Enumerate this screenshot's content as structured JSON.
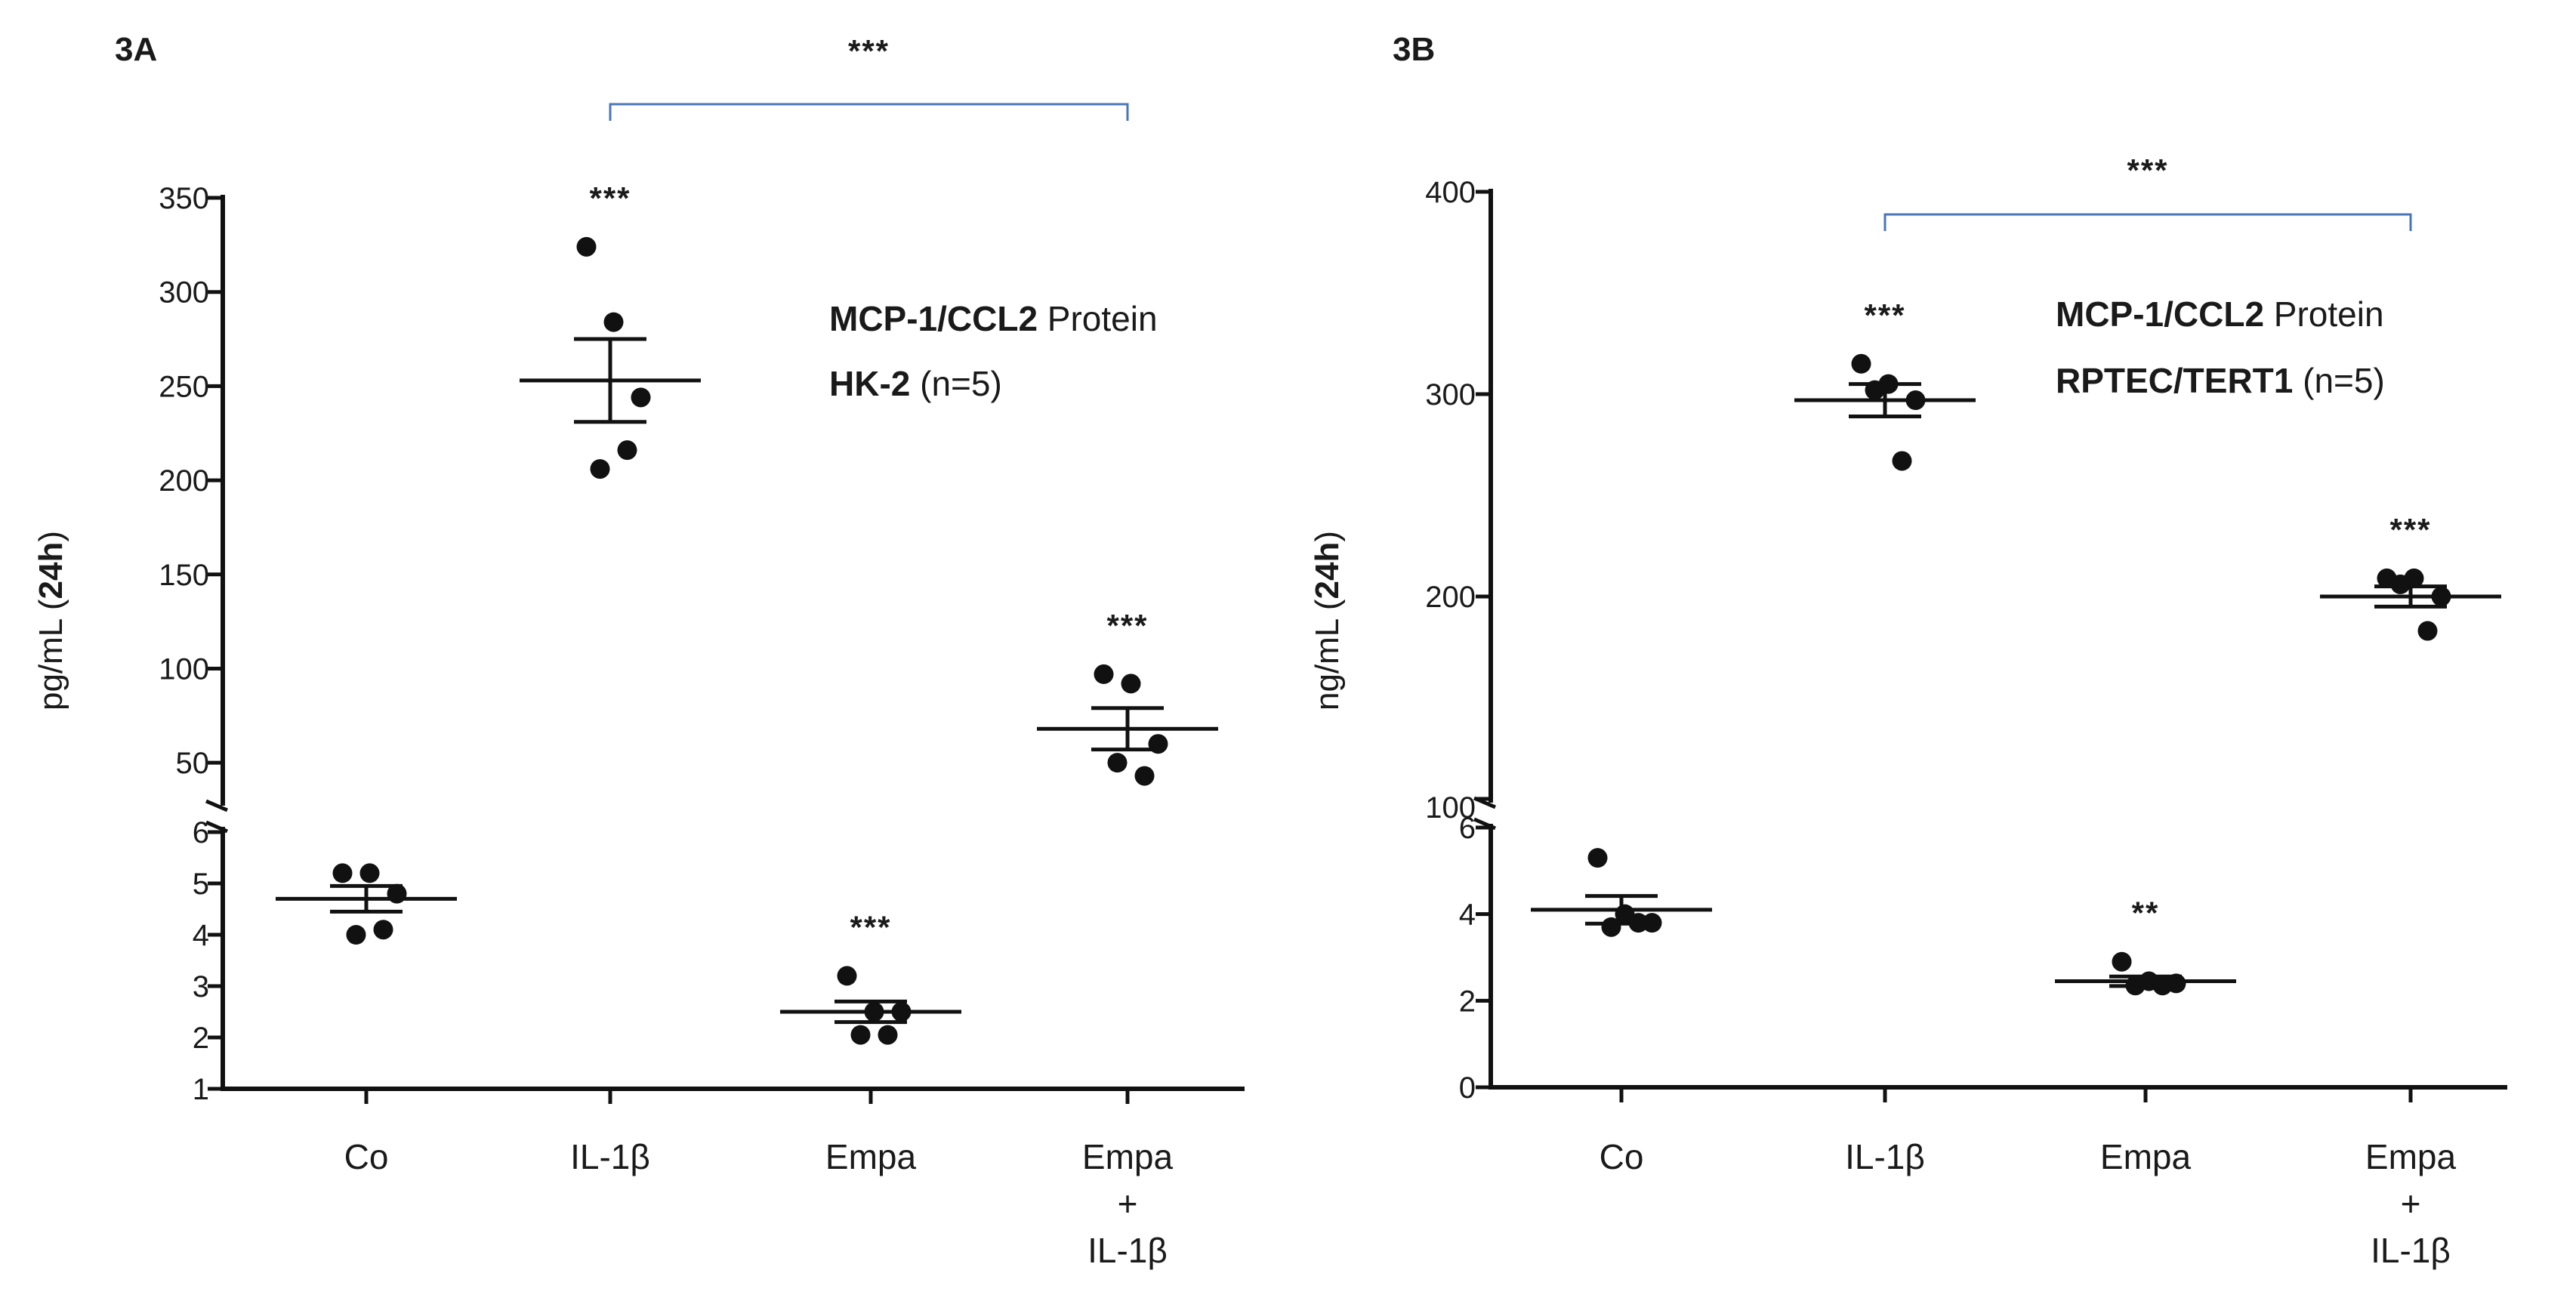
{
  "chart_data": [
    {
      "type": "scatter",
      "panel_label": "3A",
      "ylabel_unit": "pg/mL (",
      "ylabel_bold": "24h",
      "ylabel_close": ")",
      "legend": {
        "line1_bold": "MCP-1/CCL2",
        "line1_rest": " Protein",
        "line2_bold": "HK-2",
        "line2_rest": " (n=5)"
      },
      "categories": [
        {
          "lines": [
            "Co"
          ]
        },
        {
          "lines": [
            "IL-1β"
          ]
        },
        {
          "lines": [
            "Empa"
          ]
        },
        {
          "lines": [
            "Empa",
            "+",
            "IL-1β"
          ]
        }
      ],
      "lower_axis": {
        "range": [
          1,
          6
        ],
        "ticks": [
          "1",
          "2",
          "3",
          "4",
          "5",
          "6"
        ],
        "tick_values": [
          1,
          2,
          3,
          4,
          5,
          6
        ]
      },
      "upper_axis": {
        "range": [
          30,
          350
        ],
        "ticks": [
          "50",
          "100",
          "150",
          "200",
          "250",
          "300",
          "350"
        ],
        "tick_values": [
          50,
          100,
          150,
          200,
          250,
          300,
          350
        ]
      },
      "groups": [
        {
          "name": "Co",
          "segment": "lower",
          "points": [
            5.2,
            5.2,
            4.8,
            4.0,
            4.1
          ],
          "mean": 4.7,
          "sem": 0.25,
          "sig": ""
        },
        {
          "name": "IL-1β",
          "segment": "upper",
          "points": [
            324,
            284,
            244,
            206,
            216
          ],
          "mean": 253,
          "sem": 22,
          "sig": "***"
        },
        {
          "name": "Empa",
          "segment": "lower",
          "points": [
            3.2,
            2.5,
            2.5,
            2.05,
            2.05
          ],
          "mean": 2.5,
          "sem": 0.2,
          "sig": "***"
        },
        {
          "name": "Empa + IL-1β",
          "segment": "upper",
          "points": [
            97,
            92,
            60,
            50,
            43
          ],
          "mean": 68,
          "sem": 11,
          "sig": "***"
        }
      ],
      "bracket": {
        "from": 1,
        "to": 3,
        "label": "***"
      }
    },
    {
      "type": "scatter",
      "panel_label": "3B",
      "ylabel_unit": "ng/mL (",
      "ylabel_bold": "24h",
      "ylabel_close": ")",
      "legend": {
        "line1_bold": "MCP-1/CCL2",
        "line1_rest": " Protein",
        "line2_bold": "RPTEC/TERT1",
        "line2_rest": " (n=5)"
      },
      "categories": [
        {
          "lines": [
            "Co"
          ]
        },
        {
          "lines": [
            "IL-1β"
          ]
        },
        {
          "lines": [
            "Empa"
          ]
        },
        {
          "lines": [
            "Empa",
            "+",
            "IL-1β"
          ]
        }
      ],
      "lower_axis": {
        "range": [
          0,
          6
        ],
        "ticks": [
          "0",
          "2",
          "4",
          "6"
        ],
        "tick_values": [
          0,
          2,
          4,
          6
        ]
      },
      "upper_axis": {
        "range": [
          100,
          400
        ],
        "ticks": [
          "100",
          "200",
          "300",
          "400"
        ],
        "tick_values": [
          100,
          200,
          300,
          400
        ]
      },
      "groups": [
        {
          "name": "Co",
          "segment": "lower",
          "points": [
            5.3,
            4.0,
            3.8,
            3.7,
            3.8
          ],
          "mean": 4.1,
          "sem": 0.32,
          "sig": ""
        },
        {
          "name": "IL-1β",
          "segment": "upper",
          "points": [
            315,
            305,
            297,
            302,
            267
          ],
          "mean": 297,
          "sem": 8,
          "sig": "***"
        },
        {
          "name": "Empa",
          "segment": "lower",
          "points": [
            2.9,
            2.45,
            2.4,
            2.35,
            2.35
          ],
          "mean": 2.45,
          "sem": 0.11,
          "sig": "**"
        },
        {
          "name": "Empa + IL-1β",
          "segment": "upper",
          "points": [
            209,
            209,
            200,
            206,
            183
          ],
          "mean": 200,
          "sem": 5,
          "sig": "***"
        }
      ],
      "bracket": {
        "from": 1,
        "to": 3,
        "label": "***"
      }
    }
  ]
}
